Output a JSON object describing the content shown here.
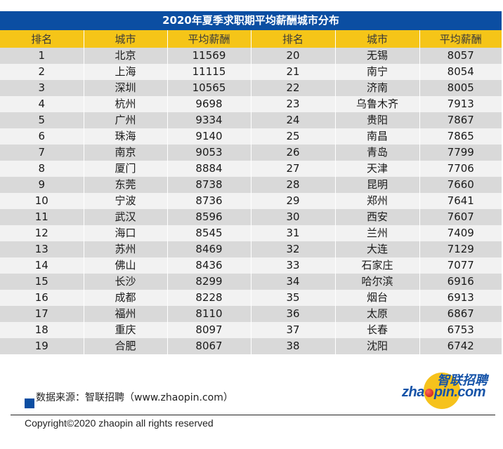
{
  "title": "2020年夏季求职期平均薪酬城市分布",
  "headers": [
    "排名",
    "城市",
    "平均薪酬",
    "排名",
    "城市",
    "平均薪酬"
  ],
  "rows": [
    [
      "1",
      "北京",
      "11569",
      "20",
      "无锡",
      "8057"
    ],
    [
      "2",
      "上海",
      "11115",
      "21",
      "南宁",
      "8054"
    ],
    [
      "3",
      "深圳",
      "10565",
      "22",
      "济南",
      "8005"
    ],
    [
      "4",
      "杭州",
      "9698",
      "23",
      "乌鲁木齐",
      "7913"
    ],
    [
      "5",
      "广州",
      "9334",
      "24",
      "贵阳",
      "7867"
    ],
    [
      "6",
      "珠海",
      "9140",
      "25",
      "南昌",
      "7865"
    ],
    [
      "7",
      "南京",
      "9053",
      "26",
      "青岛",
      "7799"
    ],
    [
      "8",
      "厦门",
      "8884",
      "27",
      "天津",
      "7706"
    ],
    [
      "9",
      "东莞",
      "8738",
      "28",
      "昆明",
      "7660"
    ],
    [
      "10",
      "宁波",
      "8736",
      "29",
      "郑州",
      "7641"
    ],
    [
      "11",
      "武汉",
      "8596",
      "30",
      "西安",
      "7607"
    ],
    [
      "12",
      "海口",
      "8545",
      "31",
      "兰州",
      "7409"
    ],
    [
      "13",
      "苏州",
      "8469",
      "32",
      "大连",
      "7129"
    ],
    [
      "14",
      "佛山",
      "8436",
      "33",
      "石家庄",
      "7077"
    ],
    [
      "15",
      "长沙",
      "8299",
      "34",
      "哈尔滨",
      "6916"
    ],
    [
      "16",
      "成都",
      "8228",
      "35",
      "烟台",
      "6913"
    ],
    [
      "17",
      "福州",
      "8110",
      "36",
      "太原",
      "6867"
    ],
    [
      "18",
      "重庆",
      "8097",
      "37",
      "长春",
      "6753"
    ],
    [
      "19",
      "合肥",
      "8067",
      "38",
      "沈阳",
      "6742"
    ]
  ],
  "footer": {
    "source": "数据来源：智联招聘（www.zhaopin.com）",
    "copyright": "Copyright©2020 zhaopin all rights reserved"
  },
  "logo": {
    "cn": "智联招聘",
    "en_pre": "zha",
    "en_post": "pin.com"
  },
  "colors": {
    "title_bg": "#0b4ea2",
    "header_bg": "#f5c518",
    "row_dark": "#d9d9d9",
    "row_light": "#f2f2f2"
  },
  "chart_data": {
    "type": "table",
    "title": "2020年夏季求职期平均薪酬城市分布",
    "columns": [
      "排名",
      "城市",
      "平均薪酬"
    ],
    "categories": [
      "北京",
      "上海",
      "深圳",
      "杭州",
      "广州",
      "珠海",
      "南京",
      "厦门",
      "东莞",
      "宁波",
      "武汉",
      "海口",
      "苏州",
      "佛山",
      "长沙",
      "成都",
      "福州",
      "重庆",
      "合肥",
      "无锡",
      "南宁",
      "济南",
      "乌鲁木齐",
      "贵阳",
      "南昌",
      "青岛",
      "天津",
      "昆明",
      "郑州",
      "西安",
      "兰州",
      "大连",
      "石家庄",
      "哈尔滨",
      "烟台",
      "太原",
      "长春",
      "沈阳"
    ],
    "ranks": [
      1,
      2,
      3,
      4,
      5,
      6,
      7,
      8,
      9,
      10,
      11,
      12,
      13,
      14,
      15,
      16,
      17,
      18,
      19,
      20,
      21,
      22,
      23,
      24,
      25,
      26,
      27,
      28,
      29,
      30,
      31,
      32,
      33,
      34,
      35,
      36,
      37,
      38
    ],
    "values": [
      11569,
      11115,
      10565,
      9698,
      9334,
      9140,
      9053,
      8884,
      8738,
      8736,
      8596,
      8545,
      8469,
      8436,
      8299,
      8228,
      8110,
      8097,
      8067,
      8057,
      8054,
      8005,
      7913,
      7867,
      7865,
      7799,
      7706,
      7660,
      7641,
      7607,
      7409,
      7129,
      7077,
      6916,
      6913,
      6867,
      6753,
      6742
    ],
    "ylabel": "平均薪酬",
    "source": "数据来源：智联招聘（www.zhaopin.com）"
  }
}
